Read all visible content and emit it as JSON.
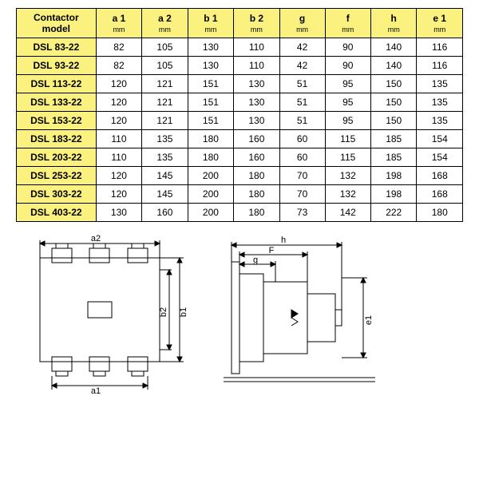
{
  "table": {
    "header_bg": "#faf17f",
    "border_color": "#000000",
    "columns": [
      {
        "label": "Contactor model",
        "unit": ""
      },
      {
        "label": "a 1",
        "unit": "mm"
      },
      {
        "label": "a 2",
        "unit": "mm"
      },
      {
        "label": "b 1",
        "unit": "mm"
      },
      {
        "label": "b 2",
        "unit": "mm"
      },
      {
        "label": "g",
        "unit": "mm"
      },
      {
        "label": "f",
        "unit": "mm"
      },
      {
        "label": "h",
        "unit": "mm"
      },
      {
        "label": "e 1",
        "unit": "mm"
      }
    ],
    "rows": [
      {
        "model": "DSL 83-22",
        "a1": "82",
        "a2": "105",
        "b1": "130",
        "b2": "110",
        "g": "42",
        "f": "90",
        "h": "140",
        "e1": "116"
      },
      {
        "model": "DSL 93-22",
        "a1": "82",
        "a2": "105",
        "b1": "130",
        "b2": "110",
        "g": "42",
        "f": "90",
        "h": "140",
        "e1": "116"
      },
      {
        "model": "DSL 113-22",
        "a1": "120",
        "a2": "121",
        "b1": "151",
        "b2": "130",
        "g": "51",
        "f": "95",
        "h": "150",
        "e1": "135"
      },
      {
        "model": "DSL 133-22",
        "a1": "120",
        "a2": "121",
        "b1": "151",
        "b2": "130",
        "g": "51",
        "f": "95",
        "h": "150",
        "e1": "135"
      },
      {
        "model": "DSL 153-22",
        "a1": "120",
        "a2": "121",
        "b1": "151",
        "b2": "130",
        "g": "51",
        "f": "95",
        "h": "150",
        "e1": "135"
      },
      {
        "model": "DSL 183-22",
        "a1": "110",
        "a2": "135",
        "b1": "180",
        "b2": "160",
        "g": "60",
        "f": "115",
        "h": "185",
        "e1": "154"
      },
      {
        "model": "DSL 203-22",
        "a1": "110",
        "a2": "135",
        "b1": "180",
        "b2": "160",
        "g": "60",
        "f": "115",
        "h": "185",
        "e1": "154"
      },
      {
        "model": "DSL 253-22",
        "a1": "120",
        "a2": "145",
        "b1": "200",
        "b2": "180",
        "g": "70",
        "f": "132",
        "h": "198",
        "e1": "168"
      },
      {
        "model": "DSL 303-22",
        "a1": "120",
        "a2": "145",
        "b1": "200",
        "b2": "180",
        "g": "70",
        "f": "132",
        "h": "198",
        "e1": "168"
      },
      {
        "model": "DSL 403-22",
        "a1": "130",
        "a2": "160",
        "b1": "200",
        "b2": "180",
        "g": "73",
        "f": "142",
        "h": "222",
        "e1": "180"
      }
    ]
  },
  "diagram": {
    "labels": {
      "a1": "a1",
      "a2": "a2",
      "b1": "b1",
      "b2": "b2",
      "h": "h",
      "f": "F",
      "g": "g",
      "e1": "e1"
    }
  }
}
